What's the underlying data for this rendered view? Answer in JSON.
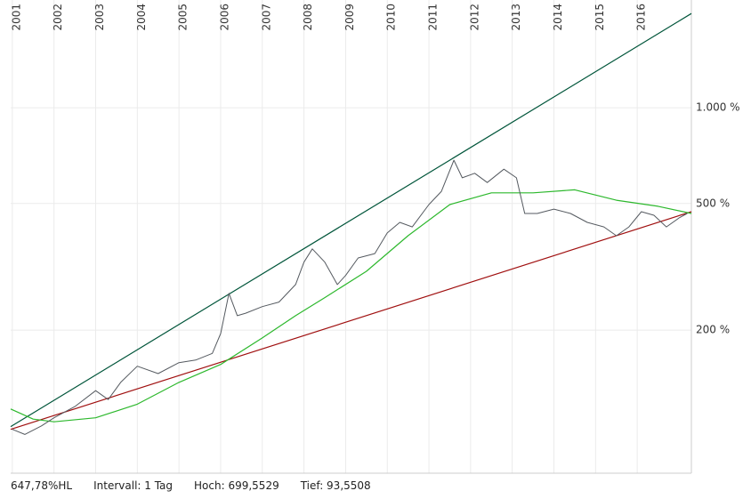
{
  "chart_data": {
    "type": "line",
    "log_y": true,
    "grid": true,
    "xlim": [
      2000.96,
      2017.3
    ],
    "xticks": [
      2001,
      2002,
      2003,
      2004,
      2005,
      2006,
      2007,
      2008,
      2009,
      2010,
      2011,
      2012,
      2013,
      2014,
      2015,
      2016
    ],
    "ylim": [
      71,
      2180
    ],
    "yticks": [
      {
        "value": 200,
        "label": "200 %"
      },
      {
        "value": 500,
        "label": "500 %"
      },
      {
        "value": 1000,
        "label": "1.000 %"
      }
    ],
    "series": [
      {
        "color": "#00553a",
        "width": 1.2,
        "x": [
          2000.96,
          2017.3
        ],
        "values": [
          99.5,
          1977
        ]
      },
      {
        "color": "#a01010",
        "width": 1.2,
        "x": [
          2000.96,
          2017.3
        ],
        "values": [
          97.5,
          471
        ]
      },
      {
        "color": "#2db82d",
        "width": 1.2,
        "x": [
          2000.96,
          2001.5,
          2002.0,
          2003.0,
          2004.0,
          2005.0,
          2006.0,
          2007.0,
          2007.8,
          2008.5,
          2009.5,
          2010.5,
          2011.5,
          2012.5,
          2013.5,
          2014.5,
          2015.5,
          2016.5,
          2017.3
        ],
        "values": [
          113,
          105,
          103,
          106,
          117,
          137,
          156,
          189,
          222,
          253,
          306,
          396,
          496,
          540,
          540,
          552,
          512,
          490,
          465
        ]
      },
      {
        "color": "#555a60",
        "width": 1,
        "x": [
          2001.0,
          2001.3,
          2001.7,
          2002.0,
          2002.5,
          2003.0,
          2003.3,
          2003.6,
          2004.0,
          2004.5,
          2005.0,
          2005.4,
          2005.8,
          2006.0,
          2006.2,
          2006.4,
          2006.6,
          2007.0,
          2007.4,
          2007.8,
          2008.0,
          2008.2,
          2008.5,
          2008.8,
          2009.0,
          2009.3,
          2009.7,
          2010.0,
          2010.3,
          2010.6,
          2011.0,
          2011.3,
          2011.6,
          2011.8,
          2012.1,
          2012.4,
          2012.8,
          2013.1,
          2013.3,
          2013.6,
          2014.0,
          2014.4,
          2014.8,
          2015.2,
          2015.5,
          2015.8,
          2016.1,
          2016.4,
          2016.7,
          2017.0,
          2017.2
        ],
        "values": [
          97.5,
          94,
          100,
          106,
          115,
          129,
          121,
          137,
          154,
          146,
          158,
          161,
          169,
          195,
          261,
          222,
          226,
          237,
          245,
          278,
          327,
          360,
          327,
          278,
          297,
          337,
          348,
          404,
          436,
          422,
          496,
          546,
          684,
          602,
          622,
          582,
          641,
          602,
          465,
          465,
          480,
          465,
          436,
          422,
          396,
          422,
          471,
          459,
          422,
          450,
          465
        ]
      }
    ],
    "info": [
      "647,78%HL",
      "Intervall: 1 Tag",
      "Hoch: 699,5529",
      "Tief: 93,5508"
    ]
  }
}
